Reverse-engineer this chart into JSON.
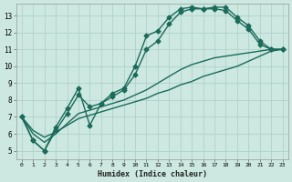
{
  "xlabel": "Humidex (Indice chaleur)",
  "background_color": "#cce8e0",
  "grid_color": "#aacec6",
  "line_color": "#1a6b5a",
  "xlim": [
    -0.5,
    23.5
  ],
  "ylim": [
    4.5,
    13.7
  ],
  "xticks": [
    0,
    1,
    2,
    3,
    4,
    5,
    6,
    7,
    8,
    9,
    10,
    11,
    12,
    13,
    14,
    15,
    16,
    17,
    18,
    19,
    20,
    21,
    22,
    23
  ],
  "yticks": [
    5,
    6,
    7,
    8,
    9,
    10,
    11,
    12,
    13
  ],
  "series": [
    {
      "x": [
        0,
        1,
        2,
        3,
        4,
        5,
        6,
        7,
        8,
        9,
        10,
        11,
        12,
        13,
        14,
        15,
        16,
        17,
        18,
        19,
        20,
        21,
        22,
        23
      ],
      "y": [
        7.0,
        5.6,
        5.0,
        6.4,
        7.5,
        8.7,
        6.5,
        7.8,
        8.4,
        8.7,
        10.0,
        11.8,
        12.1,
        12.9,
        13.4,
        13.5,
        13.4,
        13.5,
        13.5,
        12.9,
        12.4,
        11.5,
        11.0,
        11.0
      ],
      "marker": "D",
      "marker_size": 2.5,
      "linewidth": 1.0
    },
    {
      "x": [
        0,
        1,
        2,
        3,
        4,
        5,
        6,
        7,
        8,
        9,
        10,
        11,
        12,
        13,
        14,
        15,
        16,
        17,
        18,
        19,
        20,
        21,
        22,
        23
      ],
      "y": [
        7.0,
        5.6,
        5.0,
        6.2,
        7.2,
        8.3,
        7.6,
        7.8,
        8.2,
        8.6,
        9.5,
        11.0,
        11.5,
        12.5,
        13.2,
        13.4,
        13.4,
        13.4,
        13.3,
        12.7,
        12.2,
        11.3,
        11.0,
        11.0
      ],
      "marker": "D",
      "marker_size": 2.5,
      "linewidth": 1.0
    },
    {
      "x": [
        0,
        1,
        2,
        3,
        4,
        5,
        6,
        7,
        8,
        9,
        10,
        11,
        12,
        13,
        14,
        15,
        16,
        17,
        18,
        19,
        20,
        21,
        22,
        23
      ],
      "y": [
        7.0,
        6.0,
        5.5,
        6.0,
        6.6,
        7.2,
        7.4,
        7.6,
        7.8,
        8.0,
        8.3,
        8.6,
        9.0,
        9.4,
        9.8,
        10.1,
        10.3,
        10.5,
        10.6,
        10.7,
        10.8,
        10.9,
        11.0,
        11.0
      ],
      "marker": null,
      "marker_size": 0,
      "linewidth": 1.0
    },
    {
      "x": [
        0,
        1,
        2,
        3,
        4,
        5,
        6,
        7,
        8,
        9,
        10,
        11,
        12,
        13,
        14,
        15,
        16,
        17,
        18,
        19,
        20,
        21,
        22,
        23
      ],
      "y": [
        7.0,
        6.2,
        5.8,
        6.1,
        6.5,
        6.9,
        7.1,
        7.3,
        7.5,
        7.7,
        7.9,
        8.1,
        8.4,
        8.6,
        8.9,
        9.1,
        9.4,
        9.6,
        9.8,
        10.0,
        10.3,
        10.6,
        10.9,
        11.0
      ],
      "marker": null,
      "marker_size": 0,
      "linewidth": 1.0
    }
  ]
}
